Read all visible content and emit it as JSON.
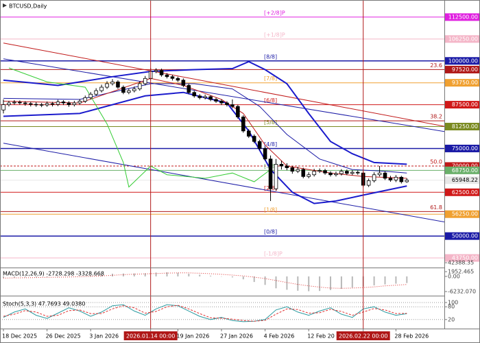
{
  "chart_data": [
    {
      "type": "candlestick",
      "title": "BTCUSD,Daily",
      "up_color": "#ffffff",
      "down_color": "#000000",
      "edge_color": "#000000",
      "xlim": [
        -0.63,
        80.88
      ],
      "ylim": [
        41211,
        117187
      ],
      "xticks": [
        {
          "value": 0,
          "label": "18 Dec 2025"
        },
        {
          "value": 8,
          "label": "26 Dec 2025"
        },
        {
          "value": 16,
          "label": "3 Jan 2026"
        },
        {
          "value": 27,
          "label": "2026.01.14 00:00"
        },
        {
          "value": 32,
          "label": "19 Jan 2026"
        },
        {
          "value": 40,
          "label": "27 Jan 2026"
        },
        {
          "value": 48,
          "label": "4 Feb 2026"
        },
        {
          "value": 56,
          "label": "12 Feb 20"
        },
        {
          "value": 66,
          "label": "2026.02.22 00:00"
        },
        {
          "value": 72,
          "label": "28 Feb 2026"
        }
      ],
      "vlines": [
        27,
        66
      ],
      "vline_color": "#b01818",
      "yticks": [
        42388.35
      ],
      "open": [
        86000,
        87500,
        88000,
        88200,
        88000,
        87800,
        87600,
        87500,
        87400,
        87800,
        87600,
        88300,
        88000,
        87500,
        88000,
        88500,
        89500,
        90500,
        91500,
        92500,
        93500,
        94000,
        92500,
        91000,
        91500,
        92000,
        93500,
        95000,
        97000,
        97300,
        96000,
        95500,
        95000,
        94500,
        93000,
        91000,
        90000,
        89500,
        89800,
        89000,
        88500,
        88000,
        87500,
        87000,
        84000,
        80000,
        78500,
        77000,
        75000,
        72000,
        63500,
        70500,
        70000,
        69500,
        68500,
        69000,
        67000,
        67500,
        68500,
        68700,
        68000,
        67500,
        67800,
        68500,
        67900,
        68200,
        68000,
        64500,
        65800,
        67500,
        68000,
        66500,
        66000,
        66800,
        65500
      ],
      "high": [
        89000,
        88600,
        88800,
        88700,
        88500,
        88300,
        88200,
        88000,
        88400,
        88300,
        88900,
        88800,
        88500,
        88600,
        89100,
        90100,
        91100,
        92200,
        93200,
        94200,
        94800,
        94500,
        93000,
        92100,
        92700,
        94100,
        95700,
        98000,
        97900,
        97800,
        96500,
        96000,
        95500,
        95000,
        93500,
        91500,
        90500,
        90400,
        90200,
        89500,
        89000,
        88500,
        89000,
        87500,
        84500,
        80500,
        79000,
        77500,
        75500,
        73000,
        72000,
        71500,
        70800,
        70000,
        69800,
        69500,
        68200,
        69200,
        69300,
        69200,
        68500,
        68400,
        69100,
        69000,
        68800,
        68700,
        68400,
        66400,
        68200,
        70000,
        68500,
        67200,
        67400,
        67200,
        66500
      ],
      "low": [
        85000,
        87000,
        87500,
        87500,
        87200,
        87000,
        86900,
        86800,
        86900,
        87000,
        87100,
        87400,
        86900,
        87000,
        87500,
        88000,
        89000,
        90000,
        91000,
        92000,
        93000,
        92000,
        90500,
        90500,
        91000,
        91500,
        93000,
        94500,
        96500,
        95500,
        95000,
        94400,
        94000,
        92500,
        90500,
        89500,
        89000,
        89000,
        88500,
        88000,
        87400,
        87000,
        86500,
        83500,
        79500,
        78000,
        76500,
        74500,
        71500,
        60000,
        63000,
        69000,
        68800,
        67800,
        68000,
        66500,
        66500,
        67000,
        68000,
        67500,
        67000,
        67000,
        67300,
        67400,
        67400,
        67500,
        64000,
        64000,
        65300,
        67000,
        66000,
        65500,
        65400,
        65000,
        65200
      ],
      "close": [
        87500,
        88000,
        88200,
        88000,
        87800,
        87600,
        87500,
        87400,
        87800,
        87600,
        88300,
        88000,
        87500,
        88000,
        88500,
        89500,
        90500,
        91500,
        92500,
        93500,
        94000,
        92500,
        91000,
        91500,
        92000,
        93500,
        95000,
        97000,
        97300,
        96000,
        95500,
        95000,
        94500,
        93000,
        91000,
        90000,
        89500,
        89800,
        89000,
        88500,
        88000,
        87500,
        87000,
        84000,
        80000,
        78500,
        77000,
        75000,
        72000,
        63500,
        70500,
        70000,
        69500,
        68500,
        69000,
        67000,
        67500,
        68500,
        68700,
        68000,
        67500,
        67800,
        68500,
        67900,
        68200,
        68000,
        64500,
        65800,
        67500,
        68000,
        66500,
        66000,
        66800,
        65500,
        65948.22
      ],
      "levels": [
        {
          "value": 112500,
          "label": "112500.00",
          "tag": "[+2/8]P",
          "color": "#e020e0"
        },
        {
          "value": 106250,
          "label": "106250.00",
          "tag": "[+1/8]P",
          "color": "#f4b6c8"
        },
        {
          "value": 100000,
          "label": "100000.00",
          "tag": "[8/8]",
          "color": "#1a1aa6"
        },
        {
          "value": 97520,
          "label": "97520.00",
          "tag": "23.6",
          "tag_align": "right",
          "color": "#b01818"
        },
        {
          "value": 93750,
          "label": "93750.00",
          "tag": "[7/8]",
          "color": "#f0a030"
        },
        {
          "value": 87500,
          "label": "87500.00",
          "tag": "[6/8]",
          "color": "#d01818"
        },
        {
          "value": 82900,
          "tag": "38.2",
          "tag_align": "right",
          "color": "#b01818"
        },
        {
          "value": 81250,
          "label": "81250.00",
          "tag": "[5/8]",
          "color": "#7a8a20"
        },
        {
          "value": 75000,
          "label": "75000.00",
          "tag": "[4/8]",
          "color": "#1a1aa6"
        },
        {
          "value": 70000,
          "label": "70000.00",
          "tag": "50.0",
          "tag_align": "right",
          "color": "#c01818",
          "dash": true
        },
        {
          "value": 68750,
          "label": "68750.00",
          "tag": "[3/8]",
          "color": "#6ab06a"
        },
        {
          "value": 65948.22,
          "label": "65948.22",
          "color": "#e8e8e8",
          "text_color": "#000000"
        },
        {
          "value": 62500,
          "label": "62500.00",
          "tag": "[2/8]",
          "color": "#d01818"
        },
        {
          "value": 57000,
          "tag": "61.8",
          "tag_align": "right",
          "color": "#b01818"
        },
        {
          "value": 56250,
          "label": "56250.00",
          "tag": "[1/8]",
          "color": "#f0a030"
        },
        {
          "value": 50000,
          "label": "50000.00",
          "tag": "[0/8]",
          "color": "#1a1aa6"
        },
        {
          "value": 43750,
          "label": "43750.00",
          "tag": "[-1/8]P",
          "color": "#f4b6c8"
        }
      ],
      "lines": [
        {
          "color": "#c01818",
          "width": 1,
          "x": [
            0,
            81
          ],
          "values": [
            105100,
            81300
          ]
        },
        {
          "color": "#1a1aa6",
          "width": 1,
          "x": [
            0,
            81
          ],
          "values": [
            100600,
            79800
          ]
        },
        {
          "color": "#1a1aa6",
          "width": 1,
          "x": [
            0,
            81
          ],
          "values": [
            76500,
            54000
          ]
        },
        {
          "color": "#1a1acc",
          "width": 2,
          "x": [
            0,
            10,
            20,
            27,
            35,
            42,
            45,
            48,
            52,
            56,
            60,
            64,
            68,
            74
          ],
          "values": [
            94500,
            93000,
            95500,
            97000,
            97500,
            97800,
            99800,
            97500,
            93500,
            85000,
            77000,
            73500,
            71000,
            70500
          ]
        },
        {
          "color": "#1a1acc",
          "width": 2,
          "x": [
            0,
            14,
            26,
            33,
            41,
            45,
            49,
            53,
            57,
            61,
            66,
            74
          ],
          "values": [
            84200,
            85000,
            90000,
            91000,
            88000,
            80000,
            69000,
            62500,
            59300,
            60000,
            61700,
            64300
          ]
        },
        {
          "color": "#1a1aa6",
          "width": 1,
          "x": [
            0,
            14,
            27,
            35,
            42,
            47,
            52,
            58,
            64,
            70,
            74
          ],
          "values": [
            89300,
            89000,
            93500,
            93500,
            92000,
            87000,
            79000,
            72000,
            69000,
            68500,
            68000
          ]
        },
        {
          "color": "#c01818",
          "width": 1,
          "x": [
            0,
            14,
            27,
            33,
            40,
            44,
            48,
            52,
            60,
            66,
            74
          ],
          "values": [
            88500,
            88000,
            95000,
            93000,
            89000,
            85000,
            76000,
            70000,
            68000,
            67000,
            66500
          ]
        },
        {
          "color": "#33cc33",
          "width": 1,
          "x": [
            1,
            8,
            15,
            19,
            22,
            23,
            27,
            30,
            37,
            42,
            46,
            49
          ],
          "values": [
            98000,
            94000,
            92500,
            82000,
            71000,
            64000,
            70000,
            67500,
            66500,
            68000,
            65500,
            69000
          ]
        }
      ]
    },
    {
      "type": "bar",
      "title": "MACD(12,26,9) -2728.298 -3328.668",
      "xlim": [
        -0.63,
        80.88
      ],
      "ylim": [
        -7643,
        3081
      ],
      "yticks": [
        1952.465,
        {
          "value": 0,
          "label": "0.00"
        },
        {
          "value": -6232.07,
          "label": "-6232.070"
        }
      ],
      "x": [
        0,
        2,
        4,
        6,
        8,
        10,
        12,
        14,
        16,
        18,
        20,
        22,
        24,
        26,
        28,
        30,
        32,
        34,
        36,
        38,
        40,
        42,
        44,
        46,
        48,
        50,
        52,
        54,
        56,
        58,
        60,
        62,
        64,
        66,
        68,
        70,
        72,
        74
      ],
      "series": [
        {
          "color": "#b8b8b8",
          "style": "bar",
          "values": [
            -600,
            -500,
            -400,
            -350,
            -300,
            -200,
            -100,
            0,
            300,
            700,
            1100,
            1200,
            1200,
            1300,
            1600,
            1700,
            1500,
            1100,
            700,
            300,
            -100,
            -400,
            -1200,
            -2300,
            -3500,
            -4900,
            -5500,
            -5900,
            -6100,
            -6000,
            -5600,
            -5100,
            -4600,
            -4200,
            -3700,
            -3300,
            -3000,
            -2728.298
          ]
        },
        {
          "color": "#e03030",
          "style": "dotted",
          "values": [
            -700,
            -600,
            -550,
            -480,
            -400,
            -330,
            -250,
            -150,
            0,
            200,
            450,
            700,
            900,
            1050,
            1200,
            1350,
            1450,
            1450,
            1300,
            1100,
            850,
            550,
            200,
            -300,
            -900,
            -1700,
            -2500,
            -3300,
            -3900,
            -4400,
            -4800,
            -4900,
            -4800,
            -4600,
            -4300,
            -3900,
            -3600,
            -3328.668
          ]
        }
      ]
    },
    {
      "type": "line",
      "title": "Stoch(5,3,3) 47.7693 49.0380",
      "xlim": [
        -0.63,
        80.88
      ],
      "ylim": [
        -19.4,
        122.6
      ],
      "yticks": [
        100,
        80,
        20
      ],
      "grid": true,
      "x": [
        0,
        2,
        4,
        6,
        8,
        10,
        12,
        14,
        16,
        18,
        20,
        22,
        24,
        26,
        28,
        30,
        32,
        34,
        36,
        38,
        40,
        42,
        44,
        46,
        48,
        50,
        52,
        54,
        56,
        58,
        60,
        62,
        64,
        66,
        68,
        70,
        72,
        74
      ],
      "series": [
        {
          "color": "#2a9aa0",
          "style": "solid",
          "values": [
            30,
            55,
            70,
            40,
            25,
            50,
            75,
            60,
            35,
            55,
            85,
            90,
            60,
            40,
            70,
            90,
            85,
            60,
            35,
            20,
            30,
            15,
            10,
            12,
            20,
            65,
            80,
            55,
            40,
            60,
            75,
            45,
            30,
            70,
            80,
            55,
            40,
            47.7693
          ]
        },
        {
          "color": "#e03030",
          "style": "dashed",
          "values": [
            35,
            45,
            62,
            55,
            35,
            40,
            62,
            65,
            48,
            48,
            70,
            85,
            75,
            50,
            58,
            80,
            87,
            70,
            48,
            28,
            26,
            22,
            15,
            12,
            16,
            45,
            70,
            67,
            50,
            52,
            68,
            58,
            40,
            55,
            72,
            65,
            48,
            49.038
          ]
        }
      ]
    }
  ]
}
